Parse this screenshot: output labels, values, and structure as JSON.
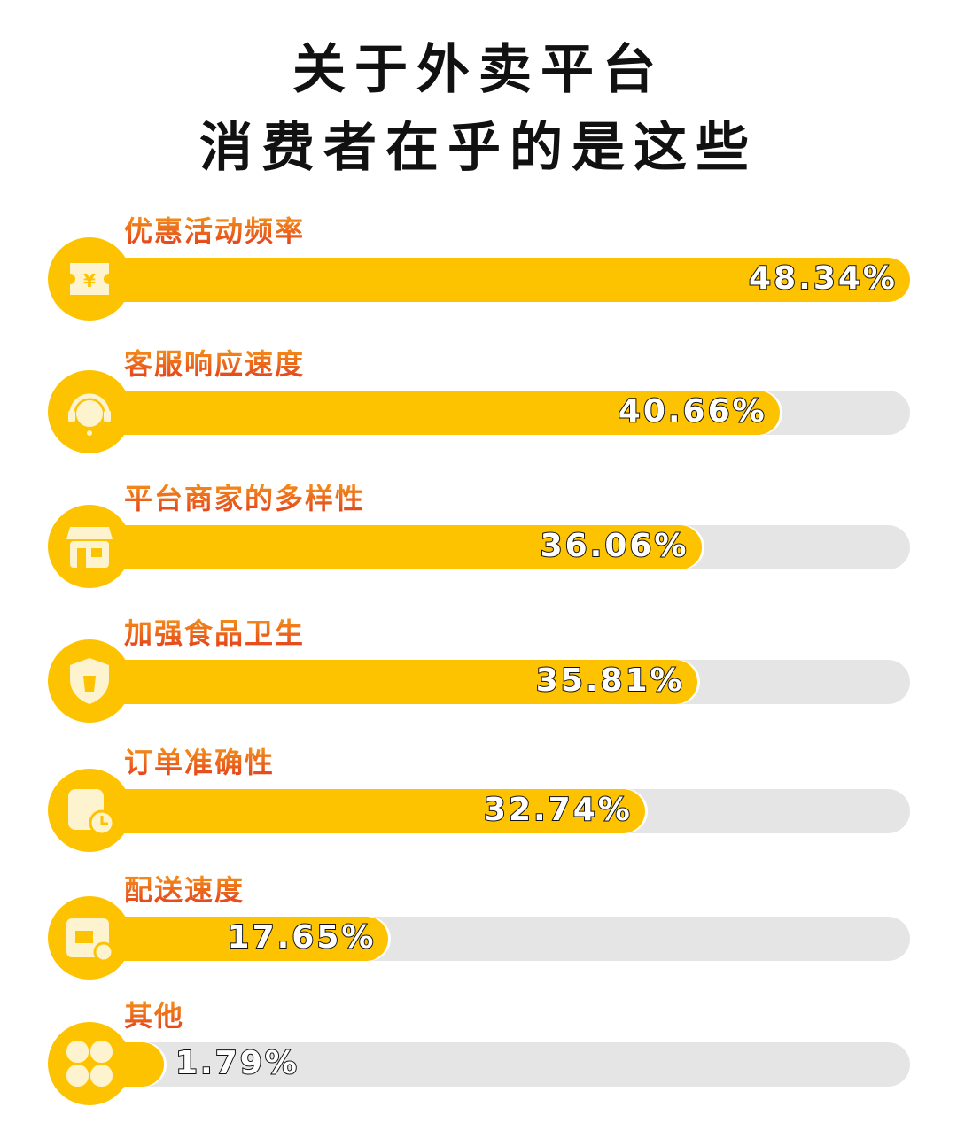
{
  "title_lines": [
    "关于外卖平台",
    "消费者在乎的是这些"
  ],
  "colors": {
    "bar": "#fdc300",
    "track": "#e5e5e5",
    "icon": "#fef3cf",
    "label_top": "#f7a21b",
    "label_bottom": "#e2371c"
  },
  "chart_data": {
    "type": "bar",
    "orientation": "horizontal",
    "categories": [
      "优惠活动频率",
      "客服响应速度",
      "平台商家的多样性",
      "加强食品卫生",
      "订单准确性",
      "配送速度",
      "其他"
    ],
    "values": [
      48.34,
      40.66,
      36.06,
      35.81,
      32.74,
      17.65,
      1.79
    ],
    "value_labels": [
      "48.34%",
      "40.66%",
      "36.06%",
      "35.81%",
      "32.74%",
      "17.65%",
      "1.79%"
    ],
    "icons": [
      "yen-ticket-icon",
      "customer-service-headset-icon",
      "storefront-icon",
      "food-safety-shield-icon",
      "order-calendar-clock-icon",
      "delivery-truck-clock-icon",
      "clover-icon"
    ],
    "unit": "%",
    "grid": false
  }
}
